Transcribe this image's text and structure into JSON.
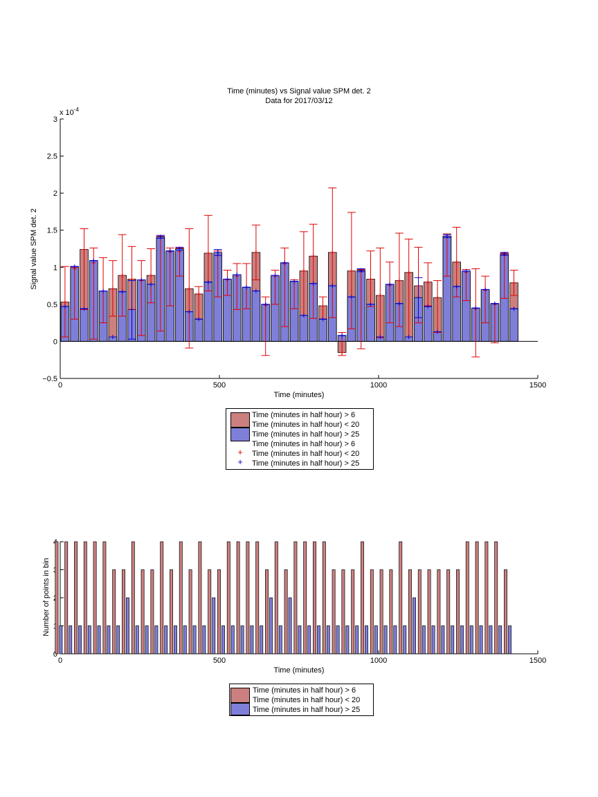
{
  "colors": {
    "red_bar": "#cc7f7f",
    "blue_bar": "#7f7fd9",
    "red_err": "#e00000",
    "blue_err": "#0000cc",
    "axis": "#000000"
  },
  "top_legend": {
    "items": [
      {
        "label": "Time (minutes in half hour) > 6",
        "symbol": "red-patch"
      },
      {
        "label": "Time (minutes in half hour) < 20",
        "symbol": "red-patch-cont"
      },
      {
        "label": "Time (minutes in half hour) > 25",
        "symbol": "blue-patch"
      },
      {
        "label": "Time (minutes in half hour) > 6",
        "symbol": "none"
      },
      {
        "label": "Time (minutes in half hour) < 20",
        "symbol": "red-plus"
      },
      {
        "label": "Time (minutes in half hour) > 25",
        "symbol": "blue-plus"
      }
    ]
  },
  "bottom_legend": {
    "items": [
      {
        "label": "Time (minutes in half hour) > 6",
        "symbol": "red-patch"
      },
      {
        "label": "Time (minutes in half hour) < 20",
        "symbol": "red-patch-cont"
      },
      {
        "label": "Time (minutes in half hour) > 25",
        "symbol": "blue-patch"
      }
    ]
  },
  "chart_data": [
    {
      "type": "bar",
      "title": "Time (minutes) vs Signal value SPM det. 2",
      "subtitle": "Data for 2017/03/12",
      "xlabel": "Time (minutes)",
      "ylabel": "Signal value SPM det. 2",
      "y_exponent_label": "x 10",
      "y_exponent_power": "-4",
      "xlim": [
        0,
        1500
      ],
      "ylim": [
        -0.5,
        3
      ],
      "xticks": [
        "0",
        "500",
        "1000",
        "1500"
      ],
      "yticks": [
        "−0.5",
        "0",
        "0.5",
        "1",
        "1.5",
        "2",
        "2.5",
        "3"
      ],
      "ytick_values": [
        -0.5,
        0,
        0.5,
        1,
        1.5,
        2,
        2.5,
        3
      ],
      "grid": false,
      "x": [
        15,
        45,
        75,
        105,
        135,
        165,
        195,
        225,
        255,
        285,
        315,
        345,
        375,
        405,
        435,
        465,
        495,
        525,
        555,
        585,
        615,
        645,
        675,
        705,
        735,
        765,
        795,
        825,
        855,
        885,
        915,
        945,
        975,
        1005,
        1035,
        1065,
        1095,
        1125,
        1155,
        1185,
        1215,
        1245,
        1275,
        1305,
        1335,
        1365,
        1395,
        1425
      ],
      "series": [
        {
          "name": "Time (minutes in half hour) > 6",
          "values": [
            0.53,
            0.98,
            1.24,
            1.06,
            0.68,
            0.71,
            0.89,
            0.84,
            0.82,
            0.89,
            1.39,
            1.21,
            1.21,
            0.71,
            0.64,
            1.19,
            1.16,
            0.83,
            0.88,
            0.73,
            1.2,
            0.49,
            0.88,
            1.05,
            0.81,
            0.95,
            1.15,
            0.48,
            1.2,
            -0.15,
            0.95,
            0.95,
            0.84,
            0.62,
            0.76,
            0.82,
            0.93,
            0.75,
            0.8,
            0.59,
            1.42,
            1.07,
            0.93,
            0.44,
            0.69,
            0.5,
            1.17,
            0.79
          ],
          "err_low": [
            0.06,
            0.3,
            0.43,
            0.03,
            0.25,
            0.34,
            0.34,
            0.43,
            0.08,
            0.52,
            0.14,
            0.48,
            0.88,
            -0.09,
            0.3,
            0.68,
            0.6,
            0.62,
            0.43,
            0.44,
            0.83,
            -0.19,
            0.5,
            0.2,
            0.44,
            0.35,
            0.31,
            0.3,
            0.32,
            -0.19,
            0.17,
            -0.1,
            0.47,
            0.05,
            0.25,
            0.2,
            0.06,
            0.25,
            0.48,
            0.12,
            0.88,
            0.6,
            0.55,
            -0.21,
            0.25,
            -0.02,
            0.58,
            0.62
          ],
          "err_high": [
            1.01,
            1.0,
            1.52,
            1.26,
            1.13,
            1.09,
            1.44,
            1.28,
            1.09,
            1.25,
            1.42,
            1.26,
            1.26,
            1.52,
            0.74,
            1.7,
            1.22,
            0.96,
            1.05,
            1.05,
            1.57,
            0.6,
            0.96,
            1.26,
            0.83,
            1.48,
            1.58,
            0.6,
            2.07,
            0.12,
            1.74,
            0.97,
            1.22,
            1.26,
            1.07,
            1.46,
            1.38,
            1.27,
            1.06,
            0.82,
            1.45,
            1.54,
            0.97,
            0.98,
            0.88,
            0.51,
            1.19,
            0.96
          ]
        },
        {
          "name": "Time (minutes in half hour) > 25",
          "values": [
            0.47,
            1.01,
            0.44,
            1.09,
            0.68,
            0.06,
            0.67,
            0.43,
            0.83,
            0.77,
            1.41,
            1.22,
            1.25,
            0.4,
            0.3,
            0.8,
            1.2,
            0.84,
            0.9,
            0.73,
            0.68,
            0.5,
            0.89,
            1.06,
            0.81,
            0.35,
            0.78,
            0.3,
            0.75,
            0.08,
            0.6,
            0.96,
            0.5,
            0.06,
            0.77,
            0.51,
            0.06,
            0.59,
            0.47,
            0.13,
            1.42,
            0.74,
            0.95,
            0.45,
            0.7,
            0.51,
            1.18,
            0.44
          ],
          "err_low": [
            0.47,
            1.01,
            0.44,
            1.09,
            0.68,
            0.06,
            0.67,
            0.03,
            0.83,
            0.77,
            1.39,
            1.22,
            1.23,
            0.4,
            0.3,
            0.8,
            1.16,
            0.84,
            0.9,
            0.73,
            0.68,
            0.5,
            0.89,
            1.06,
            0.81,
            0.35,
            0.78,
            0.3,
            0.75,
            0.08,
            0.6,
            0.94,
            0.5,
            0.06,
            0.77,
            0.51,
            0.06,
            0.32,
            0.47,
            0.13,
            1.4,
            0.74,
            0.95,
            0.45,
            0.7,
            0.51,
            1.16,
            0.44
          ],
          "err_high": [
            0.47,
            1.01,
            0.44,
            1.09,
            0.68,
            0.06,
            0.67,
            0.82,
            0.83,
            0.77,
            1.43,
            1.22,
            1.27,
            0.4,
            0.3,
            0.8,
            1.24,
            0.84,
            0.9,
            0.73,
            0.68,
            0.5,
            0.89,
            1.06,
            0.81,
            0.35,
            0.78,
            0.3,
            0.75,
            0.08,
            0.6,
            0.98,
            0.5,
            0.06,
            0.77,
            0.51,
            0.06,
            0.86,
            0.47,
            0.13,
            1.44,
            0.74,
            0.95,
            0.45,
            0.7,
            0.51,
            1.2,
            0.44
          ]
        }
      ]
    },
    {
      "type": "bar",
      "xlabel": "Time (minutes)",
      "ylabel": "Number of points in bin",
      "xlim": [
        0,
        1500
      ],
      "ylim": [
        0,
        4
      ],
      "xticks": [
        "0",
        "500",
        "1000",
        "1500"
      ],
      "yticks": [
        "0",
        "1",
        "2",
        "3",
        "4"
      ],
      "ytick_values": [
        0,
        1,
        2,
        3,
        4
      ],
      "grid": false,
      "x": [
        15,
        45,
        75,
        105,
        135,
        165,
        195,
        225,
        255,
        285,
        315,
        345,
        375,
        405,
        435,
        465,
        495,
        525,
        555,
        585,
        615,
        645,
        675,
        705,
        735,
        765,
        795,
        825,
        855,
        885,
        915,
        945,
        975,
        1005,
        1035,
        1065,
        1095,
        1125,
        1155,
        1185,
        1215,
        1245,
        1275,
        1305,
        1335,
        1365,
        1395,
        1425
      ],
      "series": [
        {
          "name": "Time (minutes in half hour) > 6",
          "values": [
            4,
            4,
            4,
            4,
            4,
            4,
            3,
            3,
            4,
            3,
            3,
            4,
            3,
            4,
            3,
            4,
            3,
            3,
            4,
            4,
            4,
            4,
            3,
            4,
            3,
            4,
            4,
            4,
            4,
            3,
            3,
            3,
            4,
            3,
            3,
            3,
            4,
            3,
            3,
            3,
            3,
            3,
            3,
            4,
            4,
            4,
            4,
            3
          ]
        },
        {
          "name": "Time (minutes in half hour) > 25",
          "values": [
            1,
            1,
            1,
            1,
            1,
            1,
            1,
            2,
            1,
            1,
            1,
            1,
            1,
            1,
            1,
            1,
            2,
            1,
            1,
            1,
            1,
            1,
            2,
            1,
            2,
            1,
            1,
            1,
            1,
            1,
            1,
            1,
            1,
            1,
            1,
            1,
            1,
            2,
            1,
            1,
            1,
            1,
            1,
            1,
            1,
            1,
            1,
            1
          ]
        }
      ]
    }
  ]
}
